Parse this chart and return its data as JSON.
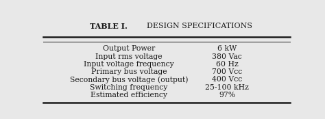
{
  "title_left": "TABLE I.",
  "title_right": "DESIGN SPECIFICATIONS",
  "rows": [
    [
      "Output Power",
      "6 kW"
    ],
    [
      "Input rms voltage",
      "380 Vac"
    ],
    [
      "Input voltage frequency",
      "60 Hz"
    ],
    [
      "Primary bus voltage",
      "700 Vcc"
    ],
    [
      "Secondary bus voltage (output)",
      "400 Vcc"
    ],
    [
      "Switching frequency",
      "25-100 kHz"
    ],
    [
      "Estimated efficiency",
      "97%"
    ]
  ],
  "background_color": "#e8e8e8",
  "text_color": "#1a1a1a",
  "line_color": "#1a1a1a",
  "title_fontsize": 8.0,
  "row_fontsize": 7.8,
  "fig_width": 4.74,
  "fig_height": 1.74,
  "dpi": 100
}
